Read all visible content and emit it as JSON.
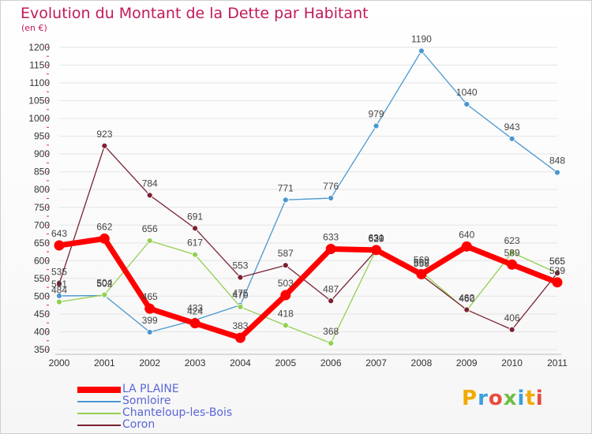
{
  "title": "Evolution du Montant de la Dette par Habitant",
  "subtitle": "(en €)",
  "logo": "Proxiti",
  "chart_data": {
    "type": "line",
    "categories": [
      "2000",
      "2001",
      "2002",
      "2003",
      "2004",
      "2005",
      "2006",
      "2007",
      "2008",
      "2009",
      "2010",
      "2011"
    ],
    "ylim": [
      350,
      1200
    ],
    "yticks": [
      350,
      400,
      450,
      500,
      550,
      600,
      650,
      700,
      750,
      800,
      850,
      900,
      950,
      1000,
      1050,
      1100,
      1150,
      1200
    ],
    "grid": "horizontal",
    "legend": "bottom-left",
    "series": [
      {
        "name": "LA PLAINE",
        "color": "#ff0000",
        "values": [
          643,
          662,
          465,
          424,
          383,
          503,
          633,
          630,
          562,
          640,
          589,
          539
        ]
      },
      {
        "name": "Somloire",
        "color": "#4a97cf",
        "values": [
          501,
          502,
          399,
          433,
          475,
          771,
          776,
          979,
          1190,
          1040,
          943,
          848
        ]
      },
      {
        "name": "Chanteloup-les-Bois",
        "color": "#92d050",
        "values": [
          484,
          504,
          656,
          617,
          470,
          418,
          368,
          631,
          569,
          460,
          623,
          565
        ]
      },
      {
        "name": "Coron",
        "color": "#7b2130",
        "values": [
          535,
          923,
          784,
          691,
          553,
          587,
          487,
          629,
          559,
          462,
          406,
          565
        ]
      }
    ]
  }
}
